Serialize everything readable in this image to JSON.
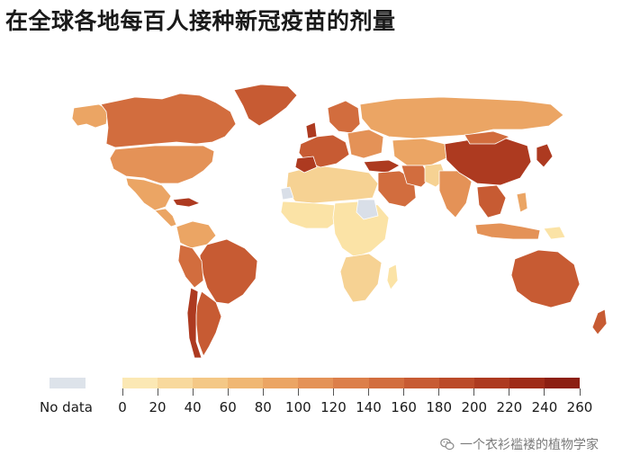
{
  "title": "在全球各地每百人接种新冠疫苗的剂量",
  "legend": {
    "no_data_label": "No data",
    "no_data_color": "#dde3ea",
    "ticks": [
      "0",
      "20",
      "40",
      "60",
      "80",
      "100",
      "120",
      "140",
      "160",
      "180",
      "200",
      "220",
      "240",
      "260"
    ],
    "colors": [
      "#fbe8b4",
      "#f8d99d",
      "#f4c886",
      "#f0b773",
      "#eba564",
      "#e49257",
      "#dc7f4a",
      "#d26d3e",
      "#c75b33",
      "#bb4a29",
      "#ad3a20",
      "#9e2b18",
      "#8c1f12"
    ]
  },
  "watermark": {
    "text": "一个衣衫褴褛的植物学家",
    "icon": "wechat-icon"
  },
  "map": {
    "colors": {
      "light": "#fbe3a6",
      "pale": "#f6d293",
      "mid": "#eba564",
      "midplus": "#e49257",
      "dark": "#d26d3e",
      "darker": "#c75b33",
      "darkest": "#ad3a20",
      "nodata": "#d9dfe8",
      "border": "#ffffff"
    }
  }
}
